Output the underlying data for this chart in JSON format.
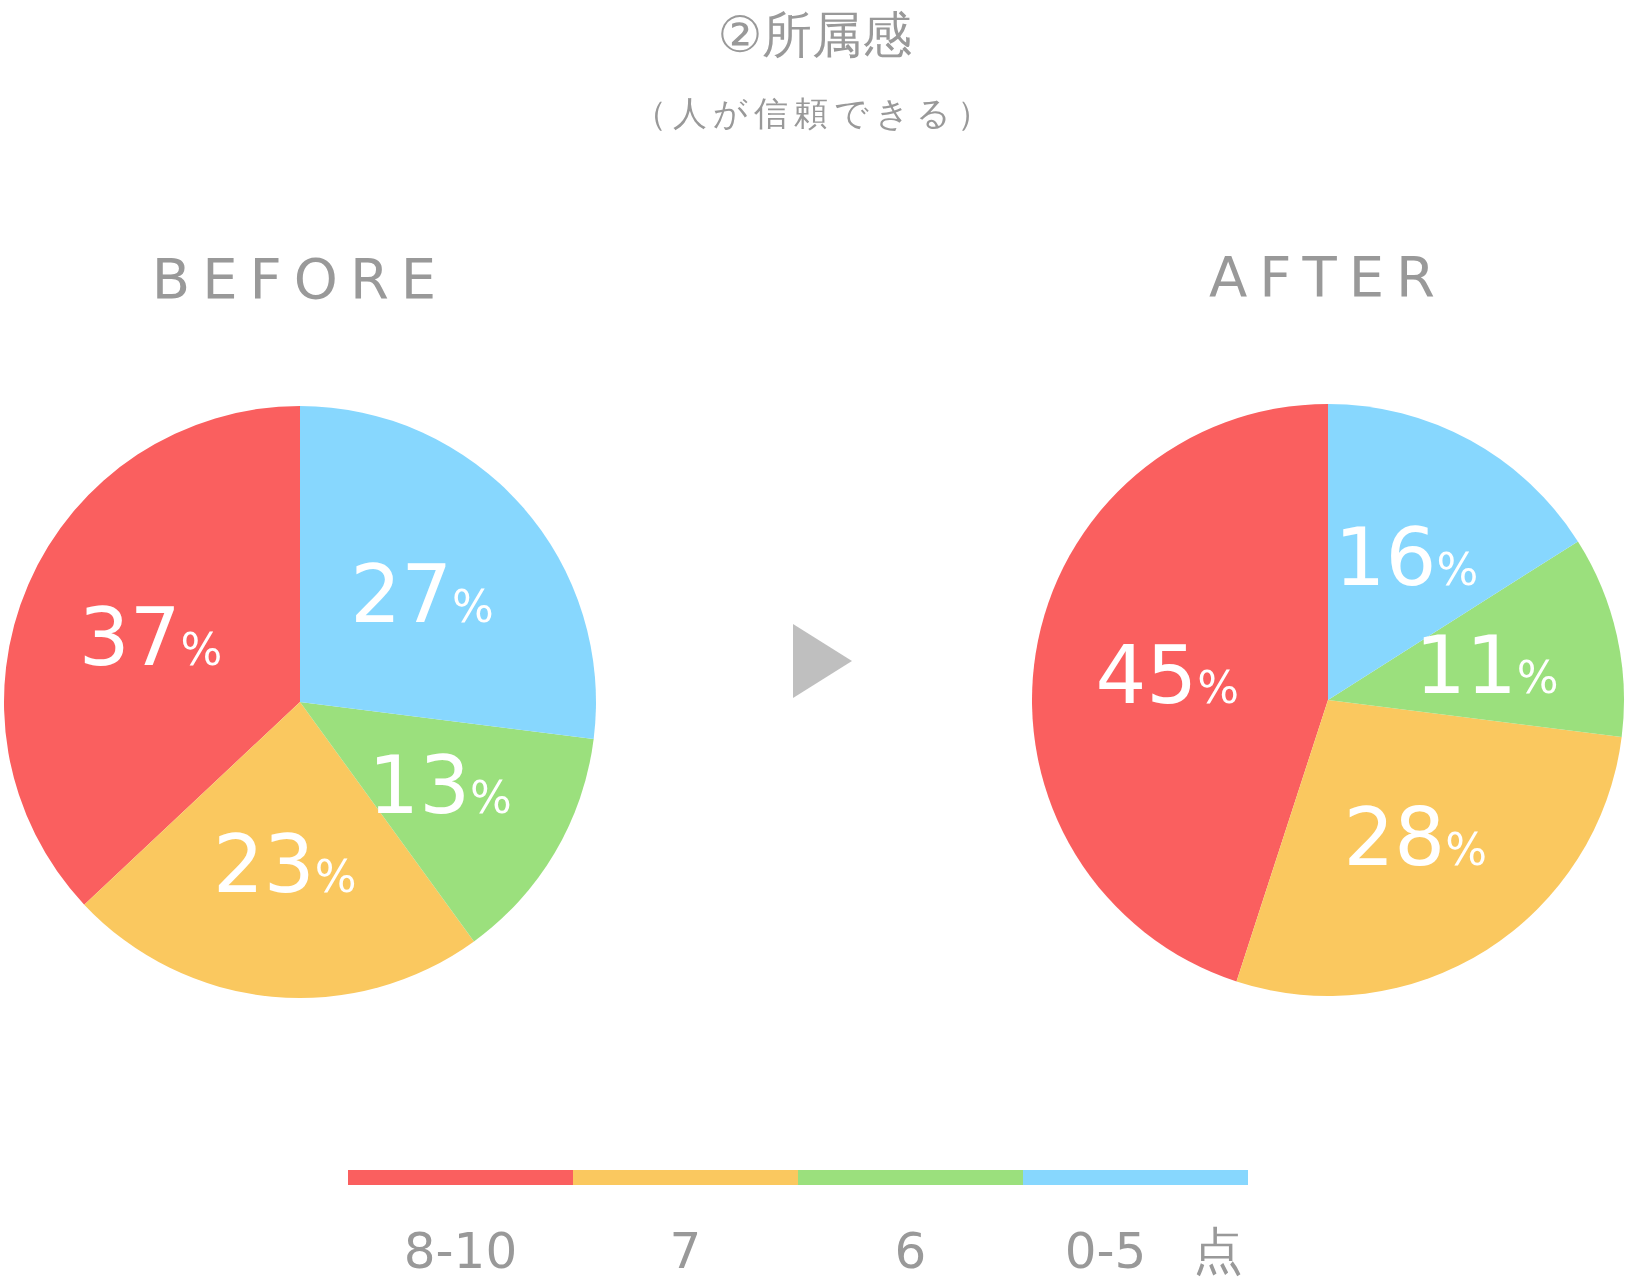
{
  "chart_data": [
    {
      "type": "pie",
      "title": "②所属感",
      "subtitle": "（人が信頼できる）",
      "xlabel": "BEFORE",
      "categories": [
        null,
        null,
        null,
        null
      ],
      "values": [
        37,
        23,
        13,
        27
      ],
      "colors": [
        "#fa5f5f",
        "#fac85f",
        "#9be07d",
        "#87d7fe"
      ],
      "value_labels": [
        "37%",
        "23%",
        "13%",
        "27%"
      ]
    },
    {
      "type": "pie",
      "xlabel": "AFTER",
      "categories": [
        "8-10",
        "7",
        "6",
        "0-5"
      ],
      "values": [
        45,
        28,
        11,
        16
      ],
      "colors": [
        "#fa5f5f",
        "#fac85f",
        "#9be07d",
        "#87d7fe"
      ],
      "value_labels": [
        "45%",
        "28%",
        "11%",
        "16%"
      ],
      "legend": "bottom",
      "annotations": [
        "点"
      ]
    }
  ]
}
